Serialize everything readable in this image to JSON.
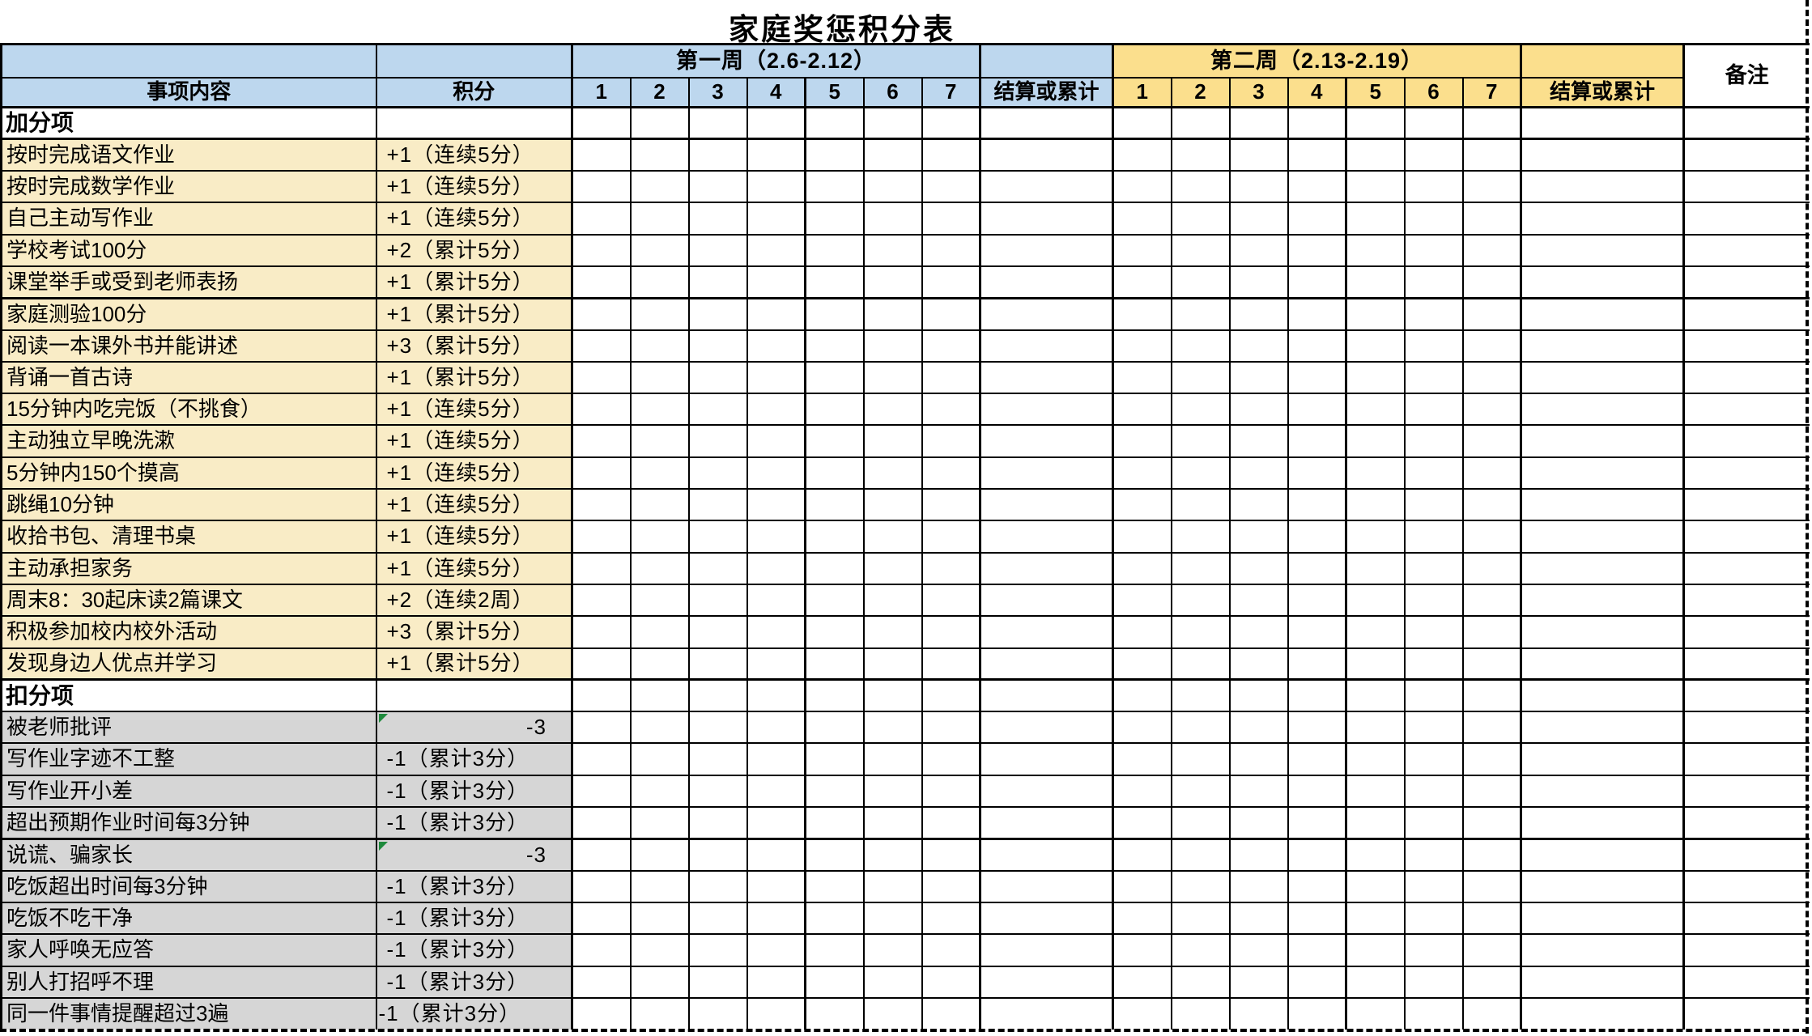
{
  "title": "家庭奖惩积分表",
  "header": {
    "item_col": "事项内容",
    "points_col": "积分",
    "week1": {
      "label": "第一周（2.6-2.12）",
      "days": [
        "1",
        "2",
        "3",
        "4",
        "5",
        "6",
        "7"
      ],
      "settle": "结算或累计"
    },
    "week2": {
      "label": "第二周（2.13-2.19）",
      "days": [
        "1",
        "2",
        "3",
        "4",
        "5",
        "6",
        "7"
      ],
      "settle": "结算或累计"
    },
    "remark": "备注"
  },
  "colors": {
    "week1_header": "#BDD7EE",
    "week2_header": "#FBDF8D",
    "plus_row_bg": "#F9ECC6",
    "minus_row_bg": "#D6D6D6",
    "comment_triangle": "#1E8A3C",
    "grid_border": "#000000"
  },
  "sections": [
    {
      "name": "加分项",
      "rows": [
        {
          "item": "按时完成语文作业",
          "points": "+1（连续5分）"
        },
        {
          "item": "按时完成数学作业",
          "points": "+1（连续5分）"
        },
        {
          "item": "自己主动写作业",
          "points": "+1（连续5分）"
        },
        {
          "item": "学校考试100分",
          "points": "+2（累计5分）"
        },
        {
          "item": "课堂举手或受到老师表扬",
          "points": "+1（累计5分）"
        },
        {
          "item": "家庭测验100分",
          "points": "+1（累计5分）"
        },
        {
          "item": "阅读一本课外书并能讲述",
          "points": "+3（累计5分）"
        },
        {
          "item": "背诵一首古诗",
          "points": "+1（累计5分）"
        },
        {
          "item": "15分钟内吃完饭（不挑食）",
          "points": "+1（连续5分）"
        },
        {
          "item": "主动独立早晚洗漱",
          "points": "+1（连续5分）"
        },
        {
          "item": "5分钟内150个摸高",
          "points": "+1（连续5分）"
        },
        {
          "item": "跳绳10分钟",
          "points": "+1（连续5分）"
        },
        {
          "item": "收拾书包、清理书桌",
          "points": "+1（连续5分）"
        },
        {
          "item": "主动承担家务",
          "points": "+1（连续5分）"
        },
        {
          "item": "周末8：30起床读2篇课文",
          "points": "+2（连续2周）"
        },
        {
          "item": "积极参加校内校外活动",
          "points": "+3（累计5分）"
        },
        {
          "item": "发现身边人优点并学习",
          "points": "+1（累计5分）"
        }
      ]
    },
    {
      "name": "扣分项",
      "rows": [
        {
          "item": "被老师批评",
          "points": "-3",
          "align": "right",
          "comment": true
        },
        {
          "item": "写作业字迹不工整",
          "points": "-1（累计3分）"
        },
        {
          "item": "写作业开小差",
          "points": "-1（累计3分）"
        },
        {
          "item": "超出预期作业时间每3分钟",
          "points": "-1（累计3分）"
        },
        {
          "item": "说谎、骗家长",
          "points": "-3",
          "align": "right",
          "comment": true
        },
        {
          "item": "吃饭超出时间每3分钟",
          "points": "-1（累计3分）"
        },
        {
          "item": "吃饭不吃干净",
          "points": "-1（累计3分）"
        },
        {
          "item": "家人呼唤无应答",
          "points": "-1（累计3分）"
        },
        {
          "item": "别人打招呼不理",
          "points": "-1（累计3分）"
        },
        {
          "item": "同一件事情提醒超过3遍",
          "points": "-1（累计3分）",
          "align": "flush"
        }
      ]
    }
  ]
}
